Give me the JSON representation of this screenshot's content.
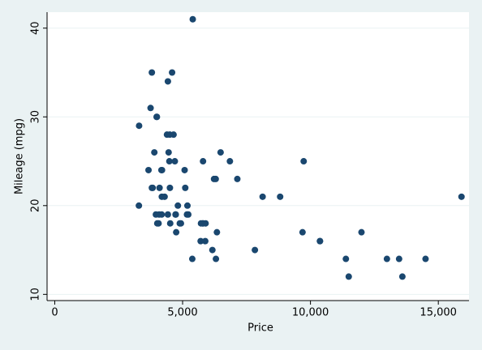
{
  "chart_data": {
    "type": "scatter",
    "x_label": "Price",
    "y_label": "Mileage (mpg)",
    "x": [
      4099,
      4749,
      3799,
      4816,
      7827,
      5788,
      4453,
      5189,
      10372,
      4082,
      11385,
      14500,
      15906,
      3299,
      5705,
      4504,
      5104,
      3667,
      3955,
      3984,
      4010,
      5886,
      6342,
      4389,
      4187,
      11497,
      13594,
      13466,
      3829,
      5379,
      6165,
      4516,
      6303,
      3291,
      8814,
      5172,
      4733,
      4890,
      4181,
      4195,
      10371,
      4647,
      4425,
      4482,
      6486,
      4060,
      5798,
      4934,
      5222,
      4723,
      4424,
      4172,
      9690,
      6295,
      9735,
      6229,
      4589,
      5079,
      8129,
      4296,
      5799,
      4499,
      3995,
      12990,
      3895,
      3798,
      5899,
      3748,
      5719,
      7140,
      5397,
      4697,
      6850,
      11995
    ],
    "values": [
      22,
      17,
      22,
      20,
      15,
      18,
      26,
      20,
      16,
      19,
      14,
      14,
      21,
      29,
      16,
      22,
      22,
      24,
      19,
      30,
      18,
      16,
      17,
      28,
      21,
      12,
      12,
      14,
      22,
      14,
      15,
      18,
      14,
      20,
      21,
      19,
      19,
      18,
      19,
      24,
      16,
      28,
      34,
      25,
      26,
      18,
      18,
      18,
      19,
      19,
      19,
      24,
      17,
      23,
      25,
      23,
      35,
      24,
      21,
      21,
      25,
      28,
      30,
      14,
      26,
      35,
      18,
      31,
      18,
      23,
      41,
      25,
      25,
      17
    ],
    "color": "#1a476f",
    "xlim": [
      -300,
      16200
    ],
    "ylim": [
      9.3,
      41.8
    ],
    "xticks": [
      0,
      {
        "value": 5000,
        "label": "5,000"
      },
      {
        "value": 10000,
        "label": "10,000"
      },
      {
        "value": 15000,
        "label": "15,000"
      }
    ],
    "yticks": [
      10,
      20,
      30,
      40
    ],
    "grid": true
  }
}
